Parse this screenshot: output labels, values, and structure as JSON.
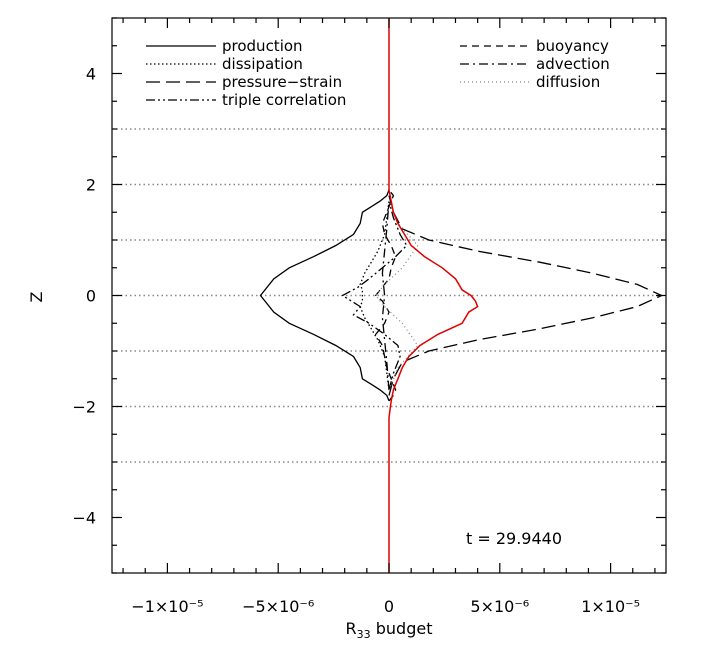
{
  "chart_data": {
    "type": "line",
    "title": "",
    "xlabel": "R",
    "xlabel_sub": "33",
    "xlabel_suffix": " budget",
    "ylabel": "Z",
    "xlim": [
      -1.25e-05,
      1.25e-05
    ],
    "ylim": [
      -5,
      5
    ],
    "x_tick_labels": [
      {
        "value": -1e-05,
        "label": "−1×10⁻⁵"
      },
      {
        "value": -5e-06,
        "label": "−5×10⁻⁶"
      },
      {
        "value": 0,
        "label": "0"
      },
      {
        "value": 5e-06,
        "label": "5×10⁻⁶"
      },
      {
        "value": 1e-05,
        "label": "1×10⁻⁵"
      }
    ],
    "y_tick_labels": [
      {
        "value": -4,
        "label": "−4"
      },
      {
        "value": -2,
        "label": "−2"
      },
      {
        "value": 0,
        "label": "0"
      },
      {
        "value": 2,
        "label": "2"
      },
      {
        "value": 4,
        "label": "4"
      }
    ],
    "reference_lines_z": [
      -3,
      -2,
      -1,
      0,
      1,
      2,
      3
    ],
    "annotation": "t = 29.9440",
    "colors": {
      "main": "#000000",
      "total": "#e00000",
      "grid": "#888888"
    },
    "legend": [
      {
        "key": "production",
        "label": "production",
        "dash": "solid"
      },
      {
        "key": "dissipation",
        "label": "dissipation",
        "dash": "dotted"
      },
      {
        "key": "pressure_strain",
        "label": "pressure−strain",
        "dash": "longdash"
      },
      {
        "key": "triple",
        "label": "triple correlation",
        "dash": "dashdotdot"
      },
      {
        "key": "buoyancy",
        "label": "buoyancy",
        "dash": "dashed"
      },
      {
        "key": "advection",
        "label": "advection",
        "dash": "dashdot"
      },
      {
        "key": "diffusion",
        "label": "diffusion",
        "dash": "finedot"
      }
    ],
    "series": [
      {
        "key": "production",
        "style": "solid",
        "color": "#000000",
        "z": [
          -1.9,
          -1.8,
          -1.7,
          -1.6,
          -1.5,
          -1.3,
          -1.1,
          -0.9,
          -0.7,
          -0.5,
          -0.3,
          0,
          0.3,
          0.5,
          0.7,
          0.9,
          1.1,
          1.3,
          1.5,
          1.6,
          1.7,
          1.8,
          1.9
        ],
        "x": [
          0,
          -1e-07,
          -4e-07,
          -8e-07,
          -1.2e-06,
          -1.3e-06,
          -1.6e-06,
          -2.4e-06,
          -3.4e-06,
          -4.5e-06,
          -5.2e-06,
          -5.8e-06,
          -5.2e-06,
          -4.5e-06,
          -3.4e-06,
          -2.4e-06,
          -1.6e-06,
          -1.3e-06,
          -1.2e-06,
          -8e-07,
          -4e-07,
          -1e-07,
          0
        ]
      },
      {
        "key": "pressure_strain",
        "style": "longdash",
        "color": "#000000",
        "z": [
          -1.8,
          -1.5,
          -1.2,
          -1.0,
          -0.8,
          -0.6,
          -0.4,
          -0.2,
          0,
          0.2,
          0.4,
          0.6,
          0.8,
          1.0,
          1.2,
          1.5,
          1.8
        ],
        "x": [
          0,
          2e-07,
          6e-07,
          1.8e-06,
          4e-06,
          6.8e-06,
          9.2e-06,
          1.12e-05,
          1.23e-05,
          1.12e-05,
          9.2e-06,
          6.8e-06,
          4e-06,
          1.8e-06,
          6e-07,
          2e-07,
          0
        ]
      },
      {
        "key": "buoyancy",
        "style": "dashed",
        "color": "#000000",
        "z": [
          -1.9,
          -1.8,
          -1.7,
          -1.5,
          -1.3,
          -1.1,
          -0.9,
          -0.7,
          -0.5,
          -0.3,
          -0.1,
          0,
          0.1,
          0.3,
          0.5,
          0.7,
          0.9,
          1.1,
          1.3,
          1.5,
          1.7,
          1.8,
          1.9
        ],
        "x": [
          0,
          2e-07,
          3e-07,
          1e-07,
          -1e-07,
          -2e-07,
          -3e-07,
          -6e-07,
          -2e-07,
          0,
          -3e-07,
          -6e-07,
          -4e-07,
          0,
          1e-07,
          3e-07,
          1e-07,
          -2e-07,
          -3e-07,
          -1e-07,
          1e-07,
          2e-07,
          0
        ]
      },
      {
        "key": "dissipation",
        "style": "dotted",
        "color": "#000000",
        "z": [
          -1.7,
          -1.4,
          -1.1,
          -0.8,
          -0.6,
          -0.4,
          -0.2,
          -0.1,
          0.1,
          0.2,
          0.4,
          0.6,
          0.8,
          1.1,
          1.4,
          1.7
        ],
        "x": [
          0,
          -1e-07,
          -2e-07,
          -5e-07,
          -8e-07,
          -1.1e-06,
          -1.3e-06,
          -1.2e-06,
          -1.2e-06,
          -1.3e-06,
          -1.1e-06,
          -8e-07,
          -5e-07,
          -2e-07,
          -1e-07,
          0
        ]
      },
      {
        "key": "triple",
        "style": "dashdotdot",
        "color": "#000000",
        "z": [
          -1.7,
          -1.4,
          -1.1,
          -0.9,
          -0.7,
          -0.5,
          -0.35,
          -0.2,
          -0.1,
          0,
          0.15,
          0.3,
          0.5,
          0.7,
          0.9,
          1.1,
          1.4,
          1.7
        ],
        "x": [
          0,
          2e-07,
          5e-07,
          4e-07,
          -2e-07,
          -9e-07,
          -1.6e-06,
          -1.3e-06,
          -1.7e-06,
          -2.1e-06,
          -1.4e-06,
          -9e-07,
          -3e-07,
          3e-07,
          8e-07,
          5e-07,
          2e-07,
          0
        ]
      },
      {
        "key": "advection",
        "style": "dashdot",
        "color": "#000000",
        "z": [
          -1.7,
          -1.2,
          -0.8,
          -0.4,
          0,
          0.4,
          0.8,
          1.2,
          1.7
        ],
        "x": [
          0,
          -1e-07,
          -2e-07,
          -3e-07,
          -2e-07,
          -3e-07,
          -2e-07,
          -1e-07,
          0
        ]
      },
      {
        "key": "diffusion",
        "style": "finedot",
        "color": "#888888",
        "z": [
          -1.7,
          -1.3,
          -0.9,
          -0.5,
          -0.2,
          0,
          0.2,
          0.5,
          0.9,
          1.3,
          1.7
        ],
        "x": [
          0,
          4e-07,
          1.3e-06,
          6e-07,
          -2e-07,
          -6e-07,
          -2e-07,
          6e-07,
          1.3e-06,
          4e-07,
          0
        ]
      },
      {
        "key": "total",
        "style": "solid",
        "color": "#e00000",
        "z": [
          -5,
          -3,
          -2.2,
          -1.9,
          -1.7,
          -1.5,
          -1.3,
          -1.1,
          -0.9,
          -0.7,
          -0.5,
          -0.3,
          -0.2,
          -0.1,
          0,
          0.1,
          0.3,
          0.5,
          0.7,
          0.9,
          1.1,
          1.3,
          1.5,
          1.7,
          1.9,
          2.2,
          3,
          5
        ],
        "x": [
          0,
          0,
          0,
          1e-07,
          2e-07,
          4e-07,
          6e-07,
          9e-07,
          1.4e-06,
          2.2e-06,
          3.3e-06,
          3.6e-06,
          4e-06,
          3.9e-06,
          3.7e-06,
          3.3e-06,
          3e-06,
          2.4e-06,
          1.6e-06,
          1e-06,
          7e-07,
          4e-07,
          2e-07,
          1e-07,
          0,
          0,
          0,
          0
        ]
      }
    ]
  }
}
